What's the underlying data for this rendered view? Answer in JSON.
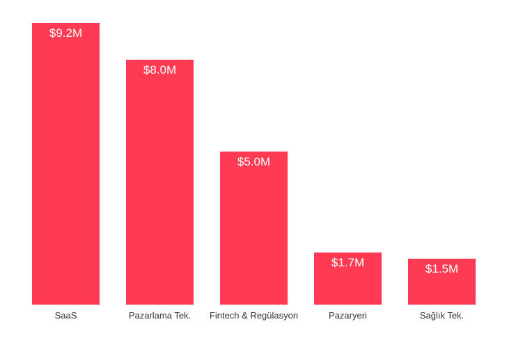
{
  "chart_data": {
    "type": "bar",
    "categories": [
      "SaaS",
      "Pazarlama Tek.",
      "Fintech & Regülasyon",
      "Pazaryeri",
      "Sağlık Tek."
    ],
    "values": [
      9.2,
      8.0,
      5.0,
      1.7,
      1.5
    ],
    "value_labels": [
      "$9.2M",
      "$8.0M",
      "$5.0M",
      "$1.7M",
      "$1.5M"
    ],
    "title": "",
    "xlabel": "",
    "ylabel": "",
    "ylim": [
      0,
      9.2
    ],
    "grid": false,
    "legend": "none",
    "bar_color": "#FF3A52",
    "label_color": "#FFFFFF",
    "category_color": "#333333"
  }
}
